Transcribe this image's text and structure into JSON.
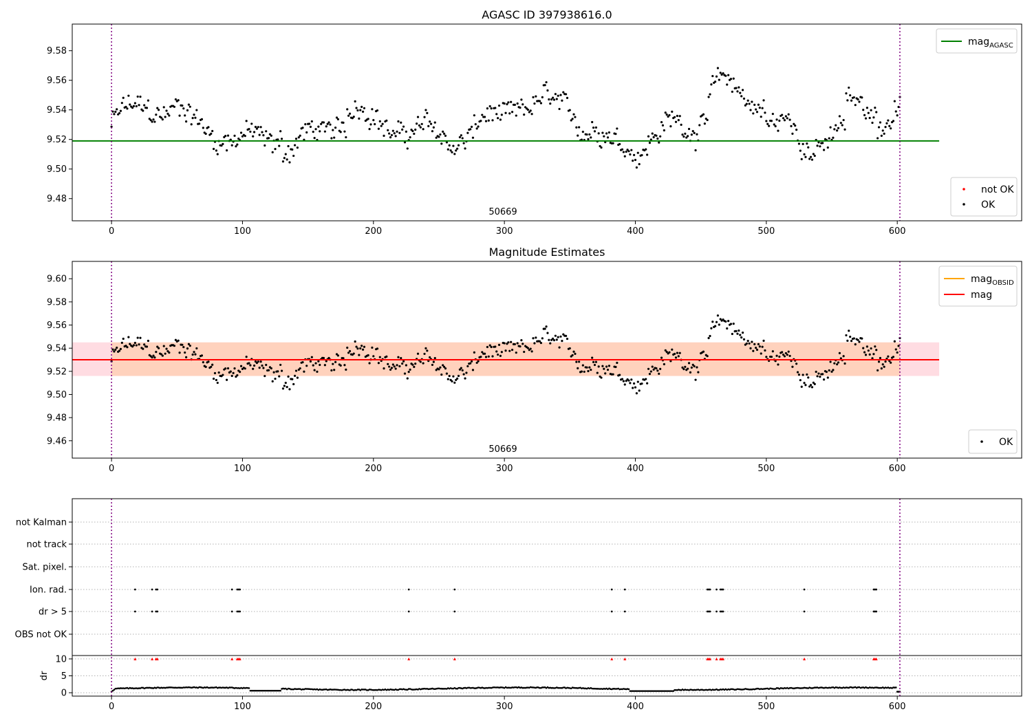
{
  "chart_data": [
    {
      "type": "scatter",
      "title": "AGASC ID 397938616.0",
      "xlim": [
        -30,
        695
      ],
      "ylim": [
        9.465,
        9.598
      ],
      "xticks": [
        0,
        100,
        200,
        300,
        400,
        500,
        600
      ],
      "yticks": [
        9.48,
        9.5,
        9.52,
        9.54,
        9.56,
        9.58
      ],
      "obsid_label": "50669",
      "obs_boundaries": [
        0,
        602
      ],
      "reference_lines": [
        {
          "name": "mag_AGASC",
          "label_base": "mag",
          "label_sub": "AGASC",
          "value": 9.519,
          "x_range": [
            -30,
            632
          ],
          "color": "#008000"
        }
      ],
      "legend_lines": {
        "items": [
          {
            "label_base": "mag",
            "label_sub": "AGASC",
            "color": "#008000"
          }
        ],
        "placement": "upper right"
      },
      "legend_points": {
        "items": [
          {
            "label": "not OK",
            "color": "#ff0000"
          },
          {
            "label": "OK",
            "color": "#000000"
          }
        ],
        "placement": "lower right"
      }
    },
    {
      "type": "scatter",
      "title": "Magnitude Estimates",
      "xlim": [
        -30,
        695
      ],
      "ylim": [
        9.445,
        9.615
      ],
      "xticks": [
        0,
        100,
        200,
        300,
        400,
        500,
        600
      ],
      "yticks": [
        9.46,
        9.48,
        9.5,
        9.52,
        9.54,
        9.56,
        9.58,
        9.6
      ],
      "obsid_label": "50669",
      "obs_boundaries": [
        0,
        602
      ],
      "reference_lines": [
        {
          "name": "mag_OBSID",
          "value": 9.53,
          "x_range": [
            0,
            602
          ],
          "color": "#ffa500"
        },
        {
          "name": "mag",
          "value": 9.53,
          "x_range": [
            -30,
            632
          ],
          "color": "#ff0000"
        }
      ],
      "bands": [
        {
          "y_range": [
            9.516,
            9.545
          ],
          "x_range": [
            -30,
            632
          ],
          "color": "#ffd0d8"
        },
        {
          "y_range": [
            9.516,
            9.545
          ],
          "x_range": [
            0,
            602
          ],
          "color": "#ffcfb0"
        }
      ],
      "legend_lines": {
        "items": [
          {
            "label_base": "mag",
            "label_sub": "OBSID",
            "color": "#ffa500"
          },
          {
            "label_base": "mag",
            "label_sub": "",
            "color": "#ff0000"
          }
        ],
        "placement": "upper right"
      },
      "legend_points": {
        "items": [
          {
            "label": "OK",
            "color": "#000000"
          }
        ],
        "placement": "lower right"
      }
    },
    {
      "type": "scatter",
      "xlim": [
        -30,
        695
      ],
      "xticks": [
        0,
        100,
        200,
        300,
        400,
        500,
        600
      ],
      "flag_labels": [
        "not Kalman",
        "not track",
        "Sat. pixel.",
        "Ion. rad.",
        "dr > 5",
        "OBS not OK"
      ],
      "flags": {
        "Ion. rad.": [
          18,
          31,
          34,
          35,
          92,
          96,
          97,
          98,
          227,
          262,
          382,
          392,
          455,
          456,
          457,
          462,
          465,
          466,
          467,
          529,
          582,
          583,
          584
        ],
        "dr > 5": [
          18,
          31,
          34,
          35,
          92,
          96,
          97,
          98,
          227,
          262,
          382,
          392,
          455,
          456,
          457,
          462,
          465,
          466,
          467,
          529,
          582,
          583,
          584
        ]
      },
      "dr_panel": {
        "ylabel": "dr",
        "ylim": [
          -1,
          11
        ],
        "yticks": [
          0,
          5,
          10
        ],
        "flagged_marker_value": 10
      }
    }
  ]
}
